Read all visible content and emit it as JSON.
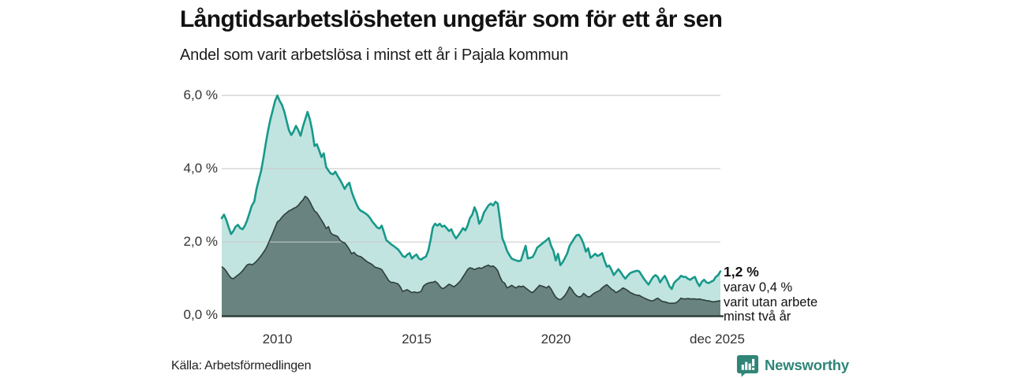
{
  "header": {
    "title": "Långtidsarbetslösheten ungefär som för ett år sen",
    "subtitle": "Andel som varit arbetslösa i minst ett år i Pajala kommun"
  },
  "chart_data": {
    "type": "area",
    "title": "Långtidsarbetslösheten ungefär som för ett år sen",
    "subtitle": "Andel som varit arbetslösa i minst ett år i Pajala kommun",
    "unit": "%",
    "x_range": {
      "start": "2008-01",
      "end": "2025-12",
      "frequency": "monthly"
    },
    "ylim": [
      0,
      6.4
    ],
    "grid": true,
    "y_tick_labels": [
      "6,0 %",
      "4,0 %",
      "2,0 %",
      "0,0 %"
    ],
    "y_tick_values": [
      6,
      4,
      2,
      0
    ],
    "x_tick_labels": [
      "2010",
      "2015",
      "2020",
      "dec 2025"
    ],
    "x_tick_month_index": [
      24,
      84,
      144,
      215
    ],
    "colors": {
      "outer_stroke": "#17998a",
      "outer_fill": "#1b9c8c",
      "outer_fill_opacity": 0.27,
      "inner_stroke": "#2e3f3b",
      "inner_fill": "#2e4440",
      "inner_fill_opacity": 0.6,
      "gridline": "#c9c9c9",
      "baseline": "#2e3f3b"
    },
    "series": [
      {
        "name": "Andel som varit arbetslösa i minst ett år",
        "values": [
          2.65,
          2.75,
          2.6,
          2.4,
          2.22,
          2.3,
          2.42,
          2.47,
          2.38,
          2.35,
          2.45,
          2.6,
          2.8,
          3.0,
          3.1,
          3.45,
          3.7,
          3.95,
          4.3,
          4.7,
          5.05,
          5.35,
          5.6,
          5.85,
          6.0,
          5.85,
          5.74,
          5.55,
          5.3,
          5.05,
          4.92,
          5.02,
          5.17,
          5.05,
          4.9,
          5.15,
          5.35,
          5.55,
          5.35,
          5.05,
          4.62,
          4.67,
          4.5,
          4.32,
          4.42,
          4.05,
          3.95,
          3.87,
          3.85,
          3.92,
          3.8,
          3.7,
          3.58,
          3.45,
          3.55,
          3.62,
          3.38,
          3.2,
          3.05,
          2.92,
          2.85,
          2.82,
          2.78,
          2.73,
          2.65,
          2.55,
          2.48,
          2.4,
          2.37,
          2.45,
          2.25,
          2.05,
          2.0,
          1.94,
          1.9,
          1.85,
          1.8,
          1.72,
          1.62,
          1.59,
          1.66,
          1.7,
          1.55,
          1.62,
          1.66,
          1.55,
          1.52,
          1.57,
          1.6,
          1.75,
          2.05,
          2.4,
          2.5,
          2.45,
          2.5,
          2.42,
          2.45,
          2.38,
          2.3,
          2.35,
          2.2,
          2.1,
          2.18,
          2.28,
          2.38,
          2.32,
          2.45,
          2.65,
          2.75,
          2.95,
          2.8,
          2.5,
          2.6,
          2.8,
          2.9,
          3.0,
          3.05,
          3.0,
          3.1,
          3.05,
          2.6,
          2.1,
          1.95,
          1.76,
          1.65,
          1.55,
          1.52,
          1.5,
          1.48,
          1.5,
          1.7,
          1.9,
          1.55,
          1.57,
          1.59,
          1.7,
          1.85,
          1.9,
          1.95,
          2.0,
          2.05,
          2.11,
          1.9,
          1.76,
          1.5,
          1.68,
          1.37,
          1.45,
          1.57,
          1.7,
          1.9,
          2.0,
          2.1,
          2.19,
          2.2,
          2.1,
          1.95,
          1.74,
          1.83,
          1.57,
          1.62,
          1.68,
          1.62,
          1.65,
          1.7,
          1.5,
          1.33,
          1.36,
          1.25,
          1.1,
          1.18,
          1.26,
          1.18,
          1.08,
          1.0,
          1.08,
          1.15,
          1.18,
          1.2,
          1.22,
          1.2,
          1.1,
          1.0,
          0.92,
          0.84,
          0.95,
          1.05,
          1.1,
          1.05,
          0.9,
          1.0,
          1.08,
          0.95,
          0.8,
          0.72,
          0.88,
          0.95,
          1.0,
          1.08,
          1.05,
          1.05,
          1.0,
          0.97,
          1.02,
          1.05,
          0.9,
          0.8,
          0.92,
          0.97,
          0.9,
          0.88,
          0.92,
          0.95,
          1.05,
          1.1,
          1.2
        ],
        "last_value_label": "1,2 %"
      },
      {
        "name": "varav utan arbete minst två år",
        "values": [
          1.33,
          1.28,
          1.2,
          1.1,
          1.02,
          1.0,
          1.05,
          1.1,
          1.15,
          1.22,
          1.3,
          1.38,
          1.4,
          1.38,
          1.42,
          1.48,
          1.55,
          1.63,
          1.72,
          1.82,
          1.95,
          2.1,
          2.25,
          2.4,
          2.55,
          2.6,
          2.68,
          2.75,
          2.8,
          2.85,
          2.88,
          2.92,
          2.95,
          3.0,
          3.08,
          3.15,
          3.25,
          3.2,
          3.1,
          2.97,
          2.85,
          2.8,
          2.7,
          2.6,
          2.5,
          2.37,
          2.42,
          2.25,
          2.2,
          2.18,
          2.15,
          2.05,
          2.0,
          1.98,
          1.9,
          1.8,
          1.68,
          1.72,
          1.65,
          1.62,
          1.6,
          1.55,
          1.5,
          1.45,
          1.42,
          1.38,
          1.32,
          1.3,
          1.28,
          1.25,
          1.15,
          1.05,
          0.95,
          0.9,
          0.9,
          0.88,
          0.86,
          0.78,
          0.65,
          0.68,
          0.7,
          0.66,
          0.62,
          0.64,
          0.62,
          0.63,
          0.66,
          0.8,
          0.85,
          0.88,
          0.9,
          0.9,
          0.93,
          0.88,
          0.8,
          0.73,
          0.75,
          0.8,
          0.85,
          0.82,
          0.78,
          0.82,
          0.88,
          0.95,
          1.05,
          1.15,
          1.25,
          1.3,
          1.28,
          1.25,
          1.28,
          1.3,
          1.28,
          1.32,
          1.35,
          1.37,
          1.33,
          1.35,
          1.3,
          1.22,
          1.05,
          0.92,
          0.88,
          0.75,
          0.78,
          0.82,
          0.78,
          0.75,
          0.8,
          0.78,
          0.8,
          0.75,
          0.7,
          0.65,
          0.62,
          0.68,
          0.75,
          0.82,
          0.8,
          0.78,
          0.75,
          0.8,
          0.72,
          0.6,
          0.5,
          0.45,
          0.43,
          0.48,
          0.55,
          0.65,
          0.78,
          0.7,
          0.6,
          0.54,
          0.5,
          0.52,
          0.6,
          0.55,
          0.5,
          0.52,
          0.58,
          0.62,
          0.65,
          0.68,
          0.75,
          0.8,
          0.84,
          0.78,
          0.72,
          0.68,
          0.62,
          0.66,
          0.7,
          0.75,
          0.72,
          0.68,
          0.63,
          0.6,
          0.57,
          0.55,
          0.55,
          0.51,
          0.48,
          0.45,
          0.42,
          0.4,
          0.4,
          0.44,
          0.47,
          0.42,
          0.38,
          0.37,
          0.35,
          0.33,
          0.33,
          0.33,
          0.35,
          0.4,
          0.47,
          0.45,
          0.45,
          0.46,
          0.45,
          0.45,
          0.45,
          0.44,
          0.45,
          0.43,
          0.42,
          0.4,
          0.4,
          0.38,
          0.37,
          0.38,
          0.39,
          0.4
        ],
        "last_value_label": "0,4 %"
      }
    ],
    "annotation": {
      "value_label": "1,2 %",
      "line1": "varav 0,4 %",
      "line2": "varit utan arbete",
      "line3": "minst två år"
    },
    "legend_position": "none"
  },
  "footer": {
    "source": "Källa: Arbetsförmedlingen",
    "brand": "Newsworthy",
    "brand_color": "#2f8577"
  }
}
